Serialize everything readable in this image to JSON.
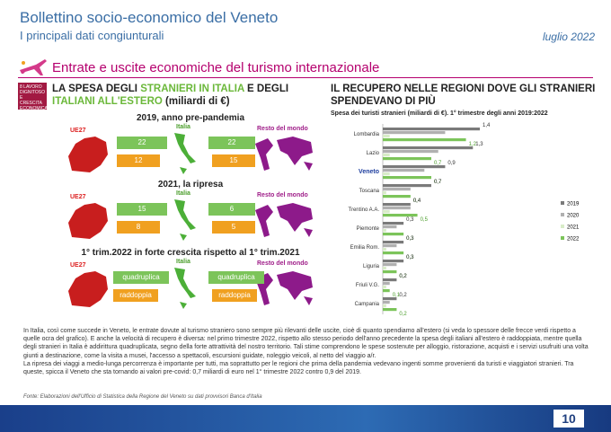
{
  "header": {
    "title": "Bollettino socio-economico del Veneto",
    "subtitle": "I principali dati congiunturali",
    "date": "luglio 2022"
  },
  "section": {
    "title": "Entrate e uscite economiche del turismo internazionale",
    "sdg_label": "8 LAVORO DIGNITOSO E CRESCITA ECONOMICA"
  },
  "left": {
    "title_pre": "LA SPESA DEGLI ",
    "title_hl": "STRANIERI IN ITALIA",
    "title_post": " E DEGLI ",
    "title_hl2": "ITALIANI ALL'ESTERO",
    "title_end": " (miliardi di €)",
    "labels": {
      "ue": "UE27",
      "italia": "Italia",
      "mondo": "Resto del mondo"
    },
    "panels": [
      {
        "title": "2019, anno pre-pandemia",
        "ue_in": "22",
        "ue_out": "12",
        "mondo_in": "22",
        "mondo_out": "15"
      },
      {
        "title": "2021, la ripresa",
        "ue_in": "15",
        "ue_out": "8",
        "mondo_in": "6",
        "mondo_out": "5"
      },
      {
        "title": "1° trim.2022 in forte crescita rispetto al 1° trim.2021",
        "ue_in": "quadruplica",
        "ue_out": "raddoppia",
        "mondo_in": "quadruplica",
        "mondo_out": "raddoppia"
      }
    ]
  },
  "right": {
    "title": "IL RECUPERO NELLE REGIONI DOVE GLI STRANIERI SPENDEVANO DI PIÙ",
    "subtitle": "Spesa dei turisti stranieri (miliardi di €). 1° trimestre degli anni 2019:2022"
  },
  "chart_data": {
    "type": "bar",
    "orientation": "horizontal",
    "categories": [
      "Lombardia",
      "Lazio",
      "Veneto",
      "Toscana",
      "Trentino A.A.",
      "Piemonte",
      "Emilia Rom.",
      "Liguria",
      "Friuli V.G.",
      "Campania"
    ],
    "series": [
      {
        "name": "2019",
        "color": "#7a7a7a",
        "values": [
          1.4,
          1.3,
          0.9,
          0.7,
          0.4,
          0.3,
          0.3,
          0.3,
          0.2,
          0.2
        ]
      },
      {
        "name": "2020",
        "color": "#b0b0b0",
        "values": [
          0.9,
          0.8,
          0.6,
          0.4,
          0.4,
          0.2,
          0.2,
          0.2,
          0.1,
          0.1
        ]
      },
      {
        "name": "2021",
        "color": "#d8ecc8",
        "values": [
          0.1,
          0.1,
          0.1,
          0.05,
          0.1,
          0.05,
          0.05,
          0.05,
          0.05,
          0.05
        ]
      },
      {
        "name": "2022",
        "color": "#7cc45a",
        "values": [
          1.2,
          0.7,
          0.7,
          0.4,
          0.5,
          0.3,
          0.3,
          0.2,
          0.1,
          0.2
        ]
      }
    ],
    "data_labels": [
      [
        "1,4",
        "1,2"
      ],
      [
        "1,3",
        "0,7"
      ],
      [
        "0,9",
        "0,7"
      ],
      [
        "0,7",
        "0,4"
      ],
      [
        "0,4",
        "0,5"
      ],
      [
        "0,3",
        "0,3"
      ],
      [
        "0,3",
        "0,3"
      ],
      [
        "0,3",
        "0,2"
      ],
      [
        "0,2",
        "0,1"
      ],
      [
        "0,2",
        "0,2"
      ]
    ],
    "xlim": [
      0,
      1.6
    ],
    "legend": "right"
  },
  "body": [
    "In Italia, così come succede in Veneto, le entrate dovute al turismo straniero sono sempre più rilevanti delle uscite, cioè di quanto spendiamo all'estero (si veda lo spessore delle frecce verdi rispetto a quelle ocra del grafico). E anche la velocità di recupero è diversa: nel primo trimestre 2022, rispetto allo stesso periodo dell'anno precedente la spesa degli italiani all'estero è raddoppiata, mentre quella degli stranieri in Italia è addirittura quadruplicata, segno della forte attrattività del nostro territorio. Tali stime comprendono le spese sostenute per alloggio, ristorazione, acquisti e i servizi usufruiti una volta giunti a destinazione, come la visita a musei, l'accesso a spettacoli, escursioni guidate, noleggio veicoli, al netto del viaggio a/r.",
    "La ripresa dei viaggi a medio-lunga percorrenza è importante per tutti, ma soprattutto per le regioni che prima della pandemia vedevano ingenti somme provenienti da turisti e viaggiatori stranieri. Tra queste, spicca il Veneto che sta tornando ai valori pre-covid: 0,7 miliardi di euro nel 1° trimestre 2022 contro 0,9 del 2019."
  ],
  "fonte": "Fonte: Elaborazioni dell'Ufficio di Statistica della Regione del Veneto su dati provvisori Banca d'Italia",
  "page_number": "10"
}
